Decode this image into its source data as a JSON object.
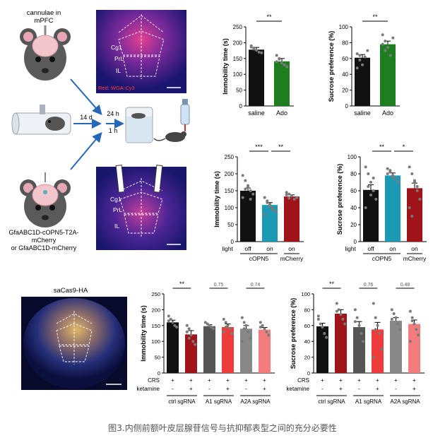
{
  "schematic": {
    "mouse1_label": "cannulae in\nmPFC",
    "mouse2_label": "GfaABC1D-cOPN5-T2A-\nmCherry\nor GfaABC1D-mCherry",
    "arrow_14d": "14 d",
    "arrow_24h": "24 h",
    "arrow_1h": "1 h"
  },
  "micrographs": {
    "top": {
      "regions": [
        "Cg1",
        "PrL",
        "IL"
      ],
      "stain": "Red: WGA-Cy3"
    },
    "middle": {
      "regions": [
        "Cg1",
        "PrL",
        "IL"
      ]
    },
    "bottom": {
      "title": "saCas9-HA"
    }
  },
  "colors": {
    "black": "#111111",
    "green": "#1e7d1e",
    "teal": "#1a9ab5",
    "darkred": "#a01319",
    "gray": "#555555",
    "red": "#ee3b3b",
    "lightgray": "#888888",
    "pink": "#f47c7c"
  },
  "chart_data": [
    {
      "type": "bar",
      "ylabel": "Immobility time (s)",
      "ylim": [
        0,
        250
      ],
      "yticks": [
        "0",
        "50",
        "100",
        "150",
        "200",
        "250"
      ],
      "categories": [
        "saline",
        "Ado"
      ],
      "values": [
        178,
        141
      ],
      "errors": [
        7,
        9
      ],
      "bar_colors": [
        "#111111",
        "#1e7d1e"
      ],
      "points": [
        [
          190,
          183,
          176,
          170,
          168,
          186,
          180
        ],
        [
          160,
          148,
          136,
          130,
          124,
          140,
          150
        ]
      ],
      "sig": [
        {
          "from": 0,
          "to": 1,
          "label": "**"
        }
      ]
    },
    {
      "type": "bar",
      "ylabel": "Sucrose preference  (%)",
      "ylim": [
        0,
        100
      ],
      "yticks": [
        "0",
        "20",
        "40",
        "60",
        "80",
        "100"
      ],
      "categories": [
        "saline",
        "Ado"
      ],
      "values": [
        61,
        78
      ],
      "errors": [
        4,
        4
      ],
      "bar_colors": [
        "#111111",
        "#1e7d1e"
      ],
      "points": [
        [
          66,
          58,
          52,
          62,
          70,
          48,
          64
        ],
        [
          90,
          82,
          74,
          64,
          86,
          78,
          70
        ]
      ],
      "sig": [
        {
          "from": 0,
          "to": 1,
          "label": "**"
        }
      ]
    },
    {
      "type": "bar",
      "ylabel": "Immobility time (s)",
      "ylim": [
        0,
        250
      ],
      "yticks": [
        "0",
        "50",
        "100",
        "150",
        "200",
        "250"
      ],
      "categories": [
        "off",
        "on",
        "on"
      ],
      "row_label": "light",
      "groups": [
        {
          "label": "cOPN5",
          "span": [
            0,
            1
          ]
        },
        {
          "label": "mCherry",
          "span": [
            2,
            2
          ]
        }
      ],
      "values": [
        150,
        108,
        133
      ],
      "errors": [
        8,
        7,
        5
      ],
      "bar_colors": [
        "#111111",
        "#1a9ab5",
        "#a01319"
      ],
      "points": [
        [
          195,
          180,
          160,
          150,
          140,
          130,
          155,
          165,
          125
        ],
        [
          130,
          120,
          110,
          100,
          90,
          80,
          115,
          105,
          95
        ],
        [
          145,
          140,
          135,
          125,
          130,
          138,
          128
        ]
      ],
      "sig": [
        {
          "from": 0,
          "to": 1,
          "label": "***"
        },
        {
          "from": 1,
          "to": 2,
          "label": "**"
        }
      ]
    },
    {
      "type": "bar",
      "ylabel": "Sucrose preference (%)",
      "ylim": [
        0,
        100
      ],
      "yticks": [
        "0",
        "20",
        "40",
        "60",
        "80",
        "100"
      ],
      "categories": [
        "off",
        "on",
        "on"
      ],
      "row_label": "light",
      "groups": [
        {
          "label": "cOPN5",
          "span": [
            0,
            1
          ]
        },
        {
          "label": "mCherry",
          "span": [
            2,
            2
          ]
        }
      ],
      "values": [
        61,
        78,
        63
      ],
      "errors": [
        6,
        3,
        6
      ],
      "bar_colors": [
        "#111111",
        "#1a9ab5",
        "#a01319"
      ],
      "points": [
        [
          88,
          80,
          70,
          60,
          50,
          40,
          65,
          55,
          75
        ],
        [
          86,
          82,
          78,
          74,
          70,
          80,
          84,
          76
        ],
        [
          88,
          80,
          72,
          60,
          50,
          40,
          30,
          70,
          65
        ]
      ],
      "sig": [
        {
          "from": 0,
          "to": 1,
          "label": "**"
        },
        {
          "from": 1,
          "to": 2,
          "label": "*"
        }
      ]
    },
    {
      "type": "bar",
      "ylabel": "Immobility time (s)",
      "ylim": [
        0,
        250
      ],
      "yticks": [
        "0",
        "50",
        "100",
        "150",
        "200",
        "250"
      ],
      "conditions": [
        {
          "label": "CRS",
          "values": [
            "+",
            "+",
            "+",
            "+",
            "+",
            "+"
          ]
        },
        {
          "label": "ketamine",
          "values": [
            "-",
            "+",
            "-",
            "+",
            "-",
            "+"
          ]
        }
      ],
      "groups": [
        {
          "label": "ctrl sgRNA",
          "span": [
            0,
            1
          ]
        },
        {
          "label": "A1 sgRNA",
          "span": [
            2,
            3
          ]
        },
        {
          "label": "A2A sgRNA",
          "span": [
            4,
            5
          ]
        }
      ],
      "values": [
        160,
        122,
        148,
        145,
        140,
        137
      ],
      "errors": [
        7,
        12,
        5,
        10,
        10,
        7
      ],
      "bar_colors": [
        "#111111",
        "#a01319",
        "#555555",
        "#ee3b3b",
        "#888888",
        "#f47c7c"
      ],
      "points": [
        [
          180,
          170,
          160,
          150,
          145,
          165
        ],
        [
          150,
          140,
          120,
          100,
          90,
          130,
          110
        ],
        [
          160,
          155,
          150,
          145,
          140
        ],
        [
          170,
          160,
          150,
          140,
          125,
          130,
          145
        ],
        [
          175,
          160,
          150,
          130,
          110,
          100,
          140
        ],
        [
          160,
          150,
          140,
          130,
          120,
          145
        ]
      ],
      "sig": [
        {
          "from": 0,
          "to": 1,
          "label": "**"
        },
        {
          "from": 2,
          "to": 3,
          "label": "0.75"
        },
        {
          "from": 4,
          "to": 5,
          "label": "0.74"
        }
      ]
    },
    {
      "type": "bar",
      "ylabel": "Sucrose preference (%)",
      "ylim": [
        0,
        100
      ],
      "yticks": [
        "0",
        "20",
        "40",
        "60",
        "80",
        "100"
      ],
      "conditions": [
        {
          "label": "CRS",
          "values": [
            "+",
            "+",
            "+",
            "+",
            "+",
            "+"
          ]
        },
        {
          "label": "ketamine",
          "values": [
            "-",
            "+",
            "-",
            "+",
            "-",
            "+"
          ]
        }
      ],
      "groups": [
        {
          "label": "ctrl sgRNA",
          "span": [
            0,
            1
          ]
        },
        {
          "label": "A1 sgRNA",
          "span": [
            2,
            3
          ]
        },
        {
          "label": "A2A sgRNA",
          "span": [
            4,
            5
          ]
        }
      ],
      "values": [
        59,
        75,
        58,
        55,
        66,
        62
      ],
      "errors": [
        4,
        5,
        7,
        9,
        4,
        5
      ],
      "bar_colors": [
        "#111111",
        "#a01319",
        "#555555",
        "#ee3b3b",
        "#888888",
        "#f47c7c"
      ],
      "points": [
        [
          72,
          62,
          58,
          50,
          45,
          68
        ],
        [
          88,
          80,
          74,
          68,
          62,
          78
        ],
        [
          80,
          70,
          60,
          50,
          40,
          65
        ],
        [
          88,
          70,
          60,
          50,
          30,
          20,
          55
        ],
        [
          80,
          75,
          70,
          62,
          55,
          68
        ],
        [
          78,
          70,
          62,
          55,
          48,
          40,
          66
        ]
      ],
      "sig": [
        {
          "from": 0,
          "to": 1,
          "label": "**"
        },
        {
          "from": 2,
          "to": 3,
          "label": "0.76"
        },
        {
          "from": 4,
          "to": 5,
          "label": "0.48"
        }
      ]
    }
  ],
  "caption": "图3.内侧前额叶皮层腺苷信号与抗抑郁表型之间的充分必要性"
}
